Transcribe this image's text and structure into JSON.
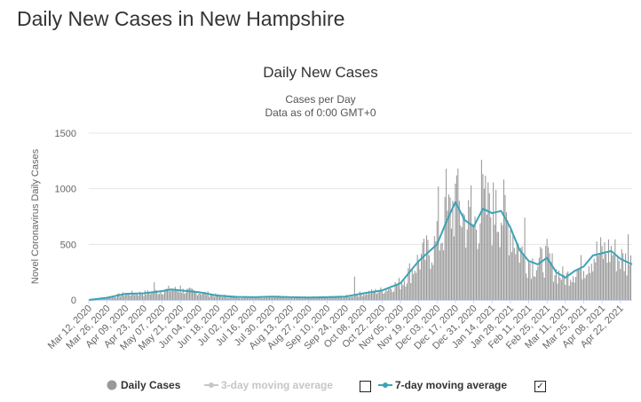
{
  "page": {
    "title": "Daily New Cases in New Hampshire"
  },
  "chart_data": {
    "type": "bar",
    "title": "Daily New Cases",
    "subtitle_lines": [
      "Cases per Day",
      "Data as of 0:00 GMT+0"
    ],
    "ylabel": "Novel Coronavirus Daily Cases",
    "xlabel": "",
    "ylim": [
      0,
      1500
    ],
    "yticks": [
      0,
      500,
      1000,
      1500
    ],
    "x_start": "2020-03-12",
    "x_end": "2021-05-01",
    "x_tick_labels": [
      "Mar 12, 2020",
      "Mar 26, 2020",
      "Apr 09, 2020",
      "Apr 23, 2020",
      "May 07, 2020",
      "May 21, 2020",
      "Jun 04, 2020",
      "Jun 18, 2020",
      "Jul 02, 2020",
      "Jul 16, 2020",
      "Jul 30, 2020",
      "Aug 13, 2020",
      "Aug 27, 2020",
      "Sep 10, 2020",
      "Sep 24, 2020",
      "Oct 08, 2020",
      "Oct 22, 2020",
      "Nov 05, 2020",
      "Nov 19, 2020",
      "Dec 03, 2020",
      "Dec 17, 2020",
      "Dec 31, 2020",
      "Jan 14, 2021",
      "Jan 28, 2021",
      "Feb 11, 2021",
      "Feb 25, 2021",
      "Mar 11, 2021",
      "Mar 25, 2021",
      "Apr 08, 2021",
      "Apr 22, 2021"
    ],
    "grid": true,
    "series": [
      {
        "name": "Daily Cases",
        "kind": "bar",
        "color": "#999999",
        "weekly_average_anchors": [
          {
            "date": "2020-03-12",
            "value": 0
          },
          {
            "date": "2020-03-26",
            "value": 20
          },
          {
            "date": "2020-04-09",
            "value": 55
          },
          {
            "date": "2020-04-23",
            "value": 60
          },
          {
            "date": "2020-05-07",
            "value": 80
          },
          {
            "date": "2020-05-14",
            "value": 95
          },
          {
            "date": "2020-05-21",
            "value": 85
          },
          {
            "date": "2020-06-04",
            "value": 70
          },
          {
            "date": "2020-06-18",
            "value": 40
          },
          {
            "date": "2020-07-02",
            "value": 28
          },
          {
            "date": "2020-07-16",
            "value": 25
          },
          {
            "date": "2020-07-30",
            "value": 30
          },
          {
            "date": "2020-08-13",
            "value": 25
          },
          {
            "date": "2020-08-27",
            "value": 22
          },
          {
            "date": "2020-09-10",
            "value": 25
          },
          {
            "date": "2020-09-24",
            "value": 30
          },
          {
            "date": "2020-10-08",
            "value": 60
          },
          {
            "date": "2020-10-22",
            "value": 85
          },
          {
            "date": "2020-11-05",
            "value": 150
          },
          {
            "date": "2020-11-19",
            "value": 350
          },
          {
            "date": "2020-12-03",
            "value": 500
          },
          {
            "date": "2020-12-10",
            "value": 700
          },
          {
            "date": "2020-12-17",
            "value": 880
          },
          {
            "date": "2020-12-24",
            "value": 720
          },
          {
            "date": "2020-12-31",
            "value": 660
          },
          {
            "date": "2021-01-07",
            "value": 820
          },
          {
            "date": "2021-01-14",
            "value": 780
          },
          {
            "date": "2021-01-21",
            "value": 800
          },
          {
            "date": "2021-01-28",
            "value": 650
          },
          {
            "date": "2021-02-04",
            "value": 450
          },
          {
            "date": "2021-02-11",
            "value": 350
          },
          {
            "date": "2021-02-18",
            "value": 320
          },
          {
            "date": "2021-02-25",
            "value": 380
          },
          {
            "date": "2021-03-04",
            "value": 250
          },
          {
            "date": "2021-03-11",
            "value": 200
          },
          {
            "date": "2021-03-18",
            "value": 260
          },
          {
            "date": "2021-03-25",
            "value": 300
          },
          {
            "date": "2021-04-01",
            "value": 400
          },
          {
            "date": "2021-04-08",
            "value": 420
          },
          {
            "date": "2021-04-15",
            "value": 440
          },
          {
            "date": "2021-04-22",
            "value": 370
          },
          {
            "date": "2021-05-01",
            "value": 320
          }
        ],
        "notable_days": [
          {
            "date": "2020-05-01",
            "value": 160
          },
          {
            "date": "2020-05-21",
            "value": 130
          },
          {
            "date": "2020-10-01",
            "value": 210
          },
          {
            "date": "2020-12-04",
            "value": 1020
          },
          {
            "date": "2020-12-10",
            "value": 1180
          },
          {
            "date": "2020-12-18",
            "value": 1120
          },
          {
            "date": "2020-12-29",
            "value": 1030
          },
          {
            "date": "2021-01-06",
            "value": 1260
          },
          {
            "date": "2021-01-12",
            "value": 960
          },
          {
            "date": "2021-01-17",
            "value": 990
          },
          {
            "date": "2021-02-08",
            "value": 740
          },
          {
            "date": "2021-04-28",
            "value": 590
          }
        ]
      },
      {
        "name": "3-day moving average",
        "kind": "line",
        "color": "#c6c6c6",
        "visible": false
      },
      {
        "name": "7-day moving average",
        "kind": "line",
        "color": "#3ba3b8",
        "values": [
          {
            "date": "2020-03-12",
            "value": 0
          },
          {
            "date": "2020-03-26",
            "value": 20
          },
          {
            "date": "2020-04-09",
            "value": 55
          },
          {
            "date": "2020-04-23",
            "value": 60
          },
          {
            "date": "2020-05-07",
            "value": 80
          },
          {
            "date": "2020-05-14",
            "value": 95
          },
          {
            "date": "2020-05-21",
            "value": 85
          },
          {
            "date": "2020-06-04",
            "value": 70
          },
          {
            "date": "2020-06-18",
            "value": 40
          },
          {
            "date": "2020-07-02",
            "value": 28
          },
          {
            "date": "2020-07-16",
            "value": 25
          },
          {
            "date": "2020-07-30",
            "value": 30
          },
          {
            "date": "2020-08-13",
            "value": 25
          },
          {
            "date": "2020-08-27",
            "value": 22
          },
          {
            "date": "2020-09-10",
            "value": 25
          },
          {
            "date": "2020-09-24",
            "value": 30
          },
          {
            "date": "2020-10-08",
            "value": 60
          },
          {
            "date": "2020-10-22",
            "value": 85
          },
          {
            "date": "2020-11-05",
            "value": 150
          },
          {
            "date": "2020-11-19",
            "value": 350
          },
          {
            "date": "2020-12-03",
            "value": 500
          },
          {
            "date": "2020-12-10",
            "value": 700
          },
          {
            "date": "2020-12-17",
            "value": 880
          },
          {
            "date": "2020-12-24",
            "value": 720
          },
          {
            "date": "2020-12-31",
            "value": 660
          },
          {
            "date": "2021-01-07",
            "value": 820
          },
          {
            "date": "2021-01-14",
            "value": 780
          },
          {
            "date": "2021-01-21",
            "value": 800
          },
          {
            "date": "2021-01-28",
            "value": 650
          },
          {
            "date": "2021-02-04",
            "value": 450
          },
          {
            "date": "2021-02-11",
            "value": 350
          },
          {
            "date": "2021-02-18",
            "value": 320
          },
          {
            "date": "2021-02-25",
            "value": 380
          },
          {
            "date": "2021-03-04",
            "value": 250
          },
          {
            "date": "2021-03-11",
            "value": 200
          },
          {
            "date": "2021-03-18",
            "value": 260
          },
          {
            "date": "2021-03-25",
            "value": 300
          },
          {
            "date": "2021-04-01",
            "value": 400
          },
          {
            "date": "2021-04-08",
            "value": 420
          },
          {
            "date": "2021-04-15",
            "value": 440
          },
          {
            "date": "2021-04-22",
            "value": 370
          },
          {
            "date": "2021-05-01",
            "value": 320
          }
        ]
      }
    ],
    "legend": {
      "placement": "bottom",
      "items": [
        {
          "label": "Daily Cases",
          "color": "#999999",
          "enabled": true
        },
        {
          "label": "3-day moving average",
          "color": "#c6c6c6",
          "enabled": false,
          "checked": false
        },
        {
          "label": "7-day moving average",
          "color": "#3ba3b8",
          "enabled": true,
          "checked": true
        }
      ]
    }
  }
}
